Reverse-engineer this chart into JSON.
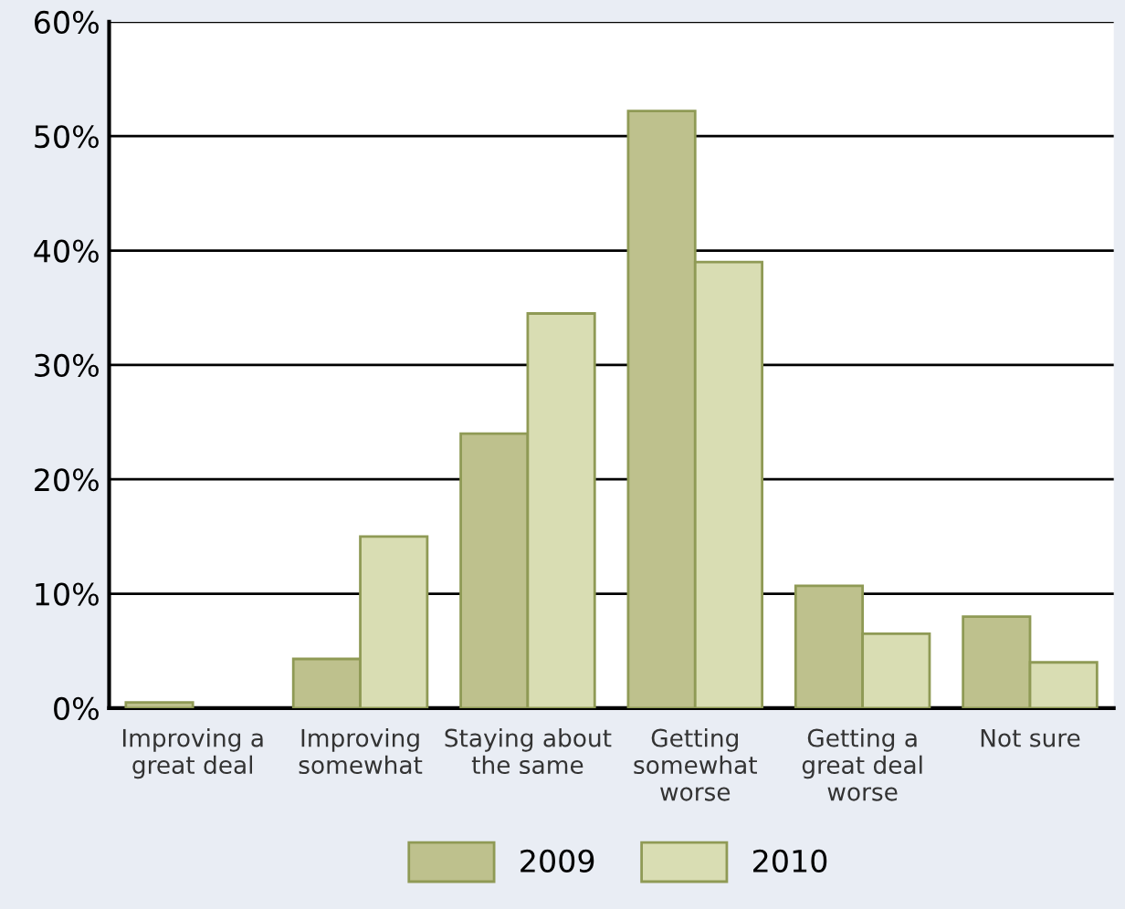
{
  "chart_data": {
    "type": "bar",
    "categories": [
      "Improving a\ngreat deal",
      "Improving\nsomewhat",
      "Staying about\nthe same",
      "Getting\nsomewhat\nworse",
      "Getting a\ngreat deal\nworse",
      "Not sure"
    ],
    "series": [
      {
        "name": "2009",
        "color": "#bec18d",
        "values": [
          0.5,
          4.3,
          24,
          52.2,
          10.7,
          8
        ]
      },
      {
        "name": "2010",
        "color": "#d9ddb3",
        "values": [
          null,
          15,
          34.5,
          39,
          6.5,
          4
        ]
      }
    ],
    "ylim": [
      0,
      60
    ],
    "yticks": [
      {
        "value": 0,
        "label": "0%"
      },
      {
        "value": 10,
        "label": "10%"
      },
      {
        "value": 20,
        "label": "20%"
      },
      {
        "value": 30,
        "label": "30%"
      },
      {
        "value": 40,
        "label": "40%"
      },
      {
        "value": 50,
        "label": "50%"
      },
      {
        "value": 60,
        "label": "60%"
      }
    ],
    "grid": "y",
    "legend": "bottom"
  }
}
